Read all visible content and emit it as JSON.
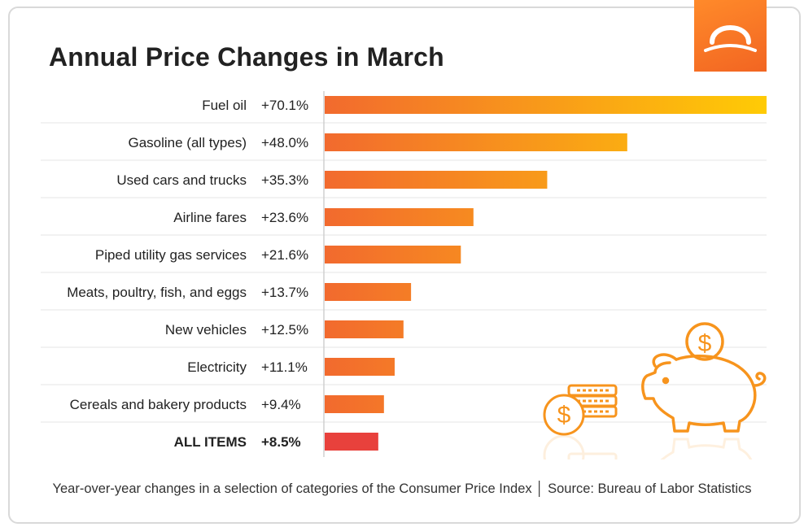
{
  "chart_data": {
    "type": "bar",
    "orientation": "horizontal",
    "title": "Annual Price Changes in March",
    "categories": [
      "Fuel oil",
      "Gasoline (all types)",
      "Used cars and trucks",
      "Airline fares",
      "Piped utility gas services",
      "Meats, poultry, fish, and eggs",
      "New vehicles",
      "Electricity",
      "Cereals and bakery products",
      "ALL ITEMS"
    ],
    "values": [
      70.1,
      48.0,
      35.3,
      23.6,
      21.6,
      13.7,
      12.5,
      11.1,
      9.4,
      8.5
    ],
    "value_labels": [
      "+70.1%",
      "+48.0%",
      "+35.3%",
      "+23.6%",
      "+21.6%",
      "+13.7%",
      "+12.5%",
      "+11.1%",
      "+9.4%",
      "+8.5%"
    ],
    "xlim": [
      0,
      70.1
    ],
    "unit": "%"
  },
  "caption": "Year-over-year changes in a selection of categories of the Consumer Price Index │ Source: Bureau of Labor Statistics",
  "colors": {
    "bar_start": "#f26a2e",
    "bar_end": "#ffcb05",
    "total_bar": "#e8413c",
    "accent": "#f7941d"
  },
  "icons": {
    "logo": "arch-logo-icon",
    "coins": "coin-stack-icon",
    "piggy": "piggy-bank-icon"
  }
}
